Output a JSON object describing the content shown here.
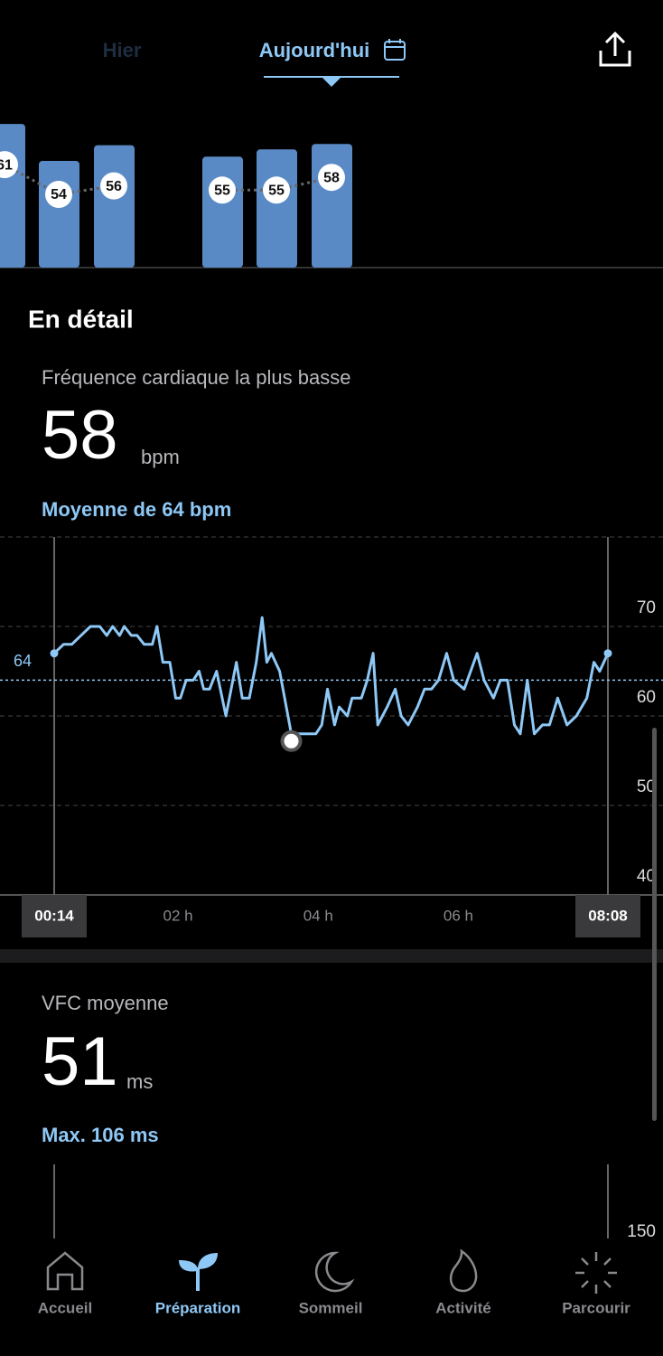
{
  "header": {
    "tabs": [
      "Hier",
      "Aujourd'hui"
    ],
    "active_tab": 1
  },
  "summary_bars": {
    "values": [
      61,
      54,
      56,
      55,
      55,
      58
    ],
    "color": "#5a8ac6"
  },
  "section_title": "En détail",
  "heart_rate": {
    "title": "Fréquence cardiaque la plus basse",
    "value": 58,
    "unit": "bpm",
    "average_text": "Moyenne de 64 bpm",
    "chart_data": {
      "type": "line",
      "x": [
        14,
        22,
        29,
        37,
        45,
        53,
        59,
        64,
        70,
        74,
        80,
        85,
        91,
        98,
        102,
        107,
        113,
        118,
        122,
        127,
        133,
        138,
        142,
        147,
        153,
        161,
        170,
        175,
        181,
        187,
        192,
        196,
        200,
        207,
        217,
        231,
        238,
        243,
        248,
        254,
        258,
        265,
        269,
        277,
        282,
        287,
        291,
        299,
        306,
        311,
        317,
        325,
        331,
        337,
        343,
        350,
        356,
        365,
        376,
        382,
        390,
        396,
        402,
        408,
        413,
        419,
        425,
        432,
        438,
        445,
        453,
        461,
        470,
        476,
        481,
        488
      ],
      "series": [
        {
          "color": "#8ec8f6",
          "values": [
            67,
            68,
            68,
            69,
            70,
            70,
            69,
            70,
            69,
            70,
            69,
            69,
            68,
            68,
            70,
            66,
            66,
            62,
            62,
            64,
            64,
            65,
            63,
            63,
            65,
            60,
            66,
            62,
            62,
            66,
            71,
            66,
            67,
            65,
            58,
            58,
            58,
            59,
            63,
            59,
            61,
            60,
            62,
            62,
            64,
            67,
            59,
            61,
            63,
            60,
            59,
            61,
            63,
            63,
            64,
            67,
            64,
            63,
            67,
            64,
            62,
            64,
            64,
            59,
            58,
            64,
            58,
            59,
            59,
            62,
            59,
            60,
            62,
            66,
            65,
            67
          ]
        }
      ],
      "xlim": [
        14,
        488
      ],
      "xticks": [
        {
          "value": 14,
          "label": "00:14"
        },
        {
          "value": 120,
          "label": "02 h"
        },
        {
          "value": 240,
          "label": "04 h"
        },
        {
          "value": 360,
          "label": "06 h"
        },
        {
          "value": 488,
          "label": "08:08"
        }
      ],
      "ylim": [
        40,
        80
      ],
      "yticks": [
        40,
        50,
        60,
        70
      ],
      "average": 64,
      "grid": true
    }
  },
  "hrv": {
    "title": "VFC moyenne",
    "value": 51,
    "unit": "ms",
    "max_text": "Max. 106 ms",
    "chart": {
      "yticks": [
        150
      ]
    }
  },
  "nav": {
    "items": [
      "Accueil",
      "Préparation",
      "Sommeil",
      "Activité",
      "Parcourir"
    ],
    "active": 1
  }
}
